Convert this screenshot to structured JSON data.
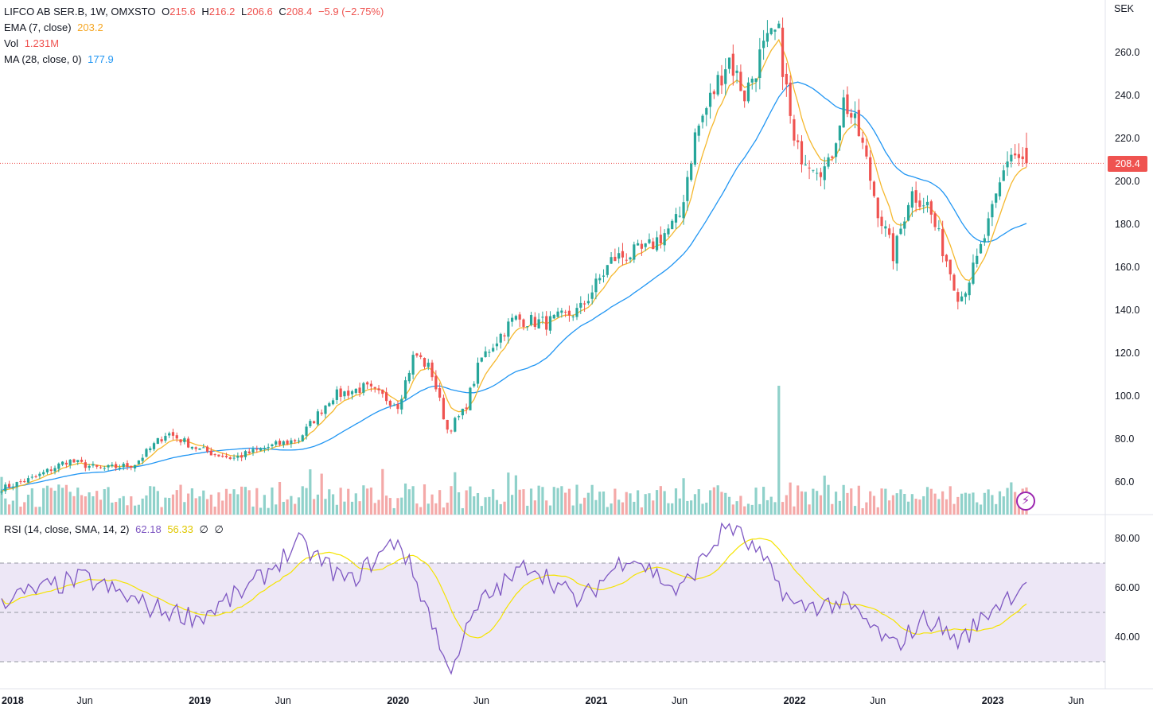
{
  "legend": {
    "symbol": "LIFCO AB SER.B, 1W, OMXSTO",
    "o_label": "O",
    "o_value": "215.6",
    "h_label": "H",
    "h_value": "216.2",
    "l_label": "L",
    "l_value": "206.6",
    "c_label": "C",
    "c_value": "208.4",
    "change": "−5.9 (−2.75%)",
    "ema_label": "EMA (7, close)",
    "ema_value": "203.2",
    "vol_label": "Vol",
    "vol_value": "1.231M",
    "ma_label": "MA (28, close, 0)",
    "ma_value": "177.9",
    "rsi_label": "RSI (14, close, SMA, 14, 2)",
    "rsi_value": "62.18",
    "rsi_sma_value": "56.33",
    "rsi_extra1": "∅",
    "rsi_extra2": "∅"
  },
  "currency": "SEK",
  "last_price_tag": "208.4",
  "colors": {
    "up": "#26a69a",
    "down": "#ef5350",
    "ema": "#f5b82e",
    "ma": "#2196f3",
    "rsi": "#7e57c2",
    "rsi_sma": "#f5e400",
    "rsi_band": "#ede7f6",
    "vol_up": "#8fd1ca",
    "vol_down": "#f4a9a8"
  },
  "chart_data": {
    "type": "candlestick",
    "interval": "1W",
    "y_axis_ticks": [
      "260.0",
      "240.0",
      "220.0",
      "200.0",
      "180.0",
      "160.0",
      "140.0",
      "120.0",
      "100.0",
      "80.0",
      "60.0"
    ],
    "rsi_axis_ticks": [
      "80.00",
      "60.00",
      "40.00"
    ],
    "x_axis_ticks": [
      "2018",
      "Jun",
      "2019",
      "Jun",
      "2020",
      "Jun",
      "2021",
      "Jun",
      "2022",
      "Jun",
      "2023",
      "Jun"
    ],
    "ohlc_last": {
      "open": 215.6,
      "high": 216.2,
      "low": 206.6,
      "close": 208.4
    },
    "close_path": [
      [
        "2018-01",
        57
      ],
      [
        "2018-03",
        62
      ],
      [
        "2018-05",
        70
      ],
      [
        "2018-07",
        66
      ],
      [
        "2018-09",
        68
      ],
      [
        "2018-11",
        83
      ],
      [
        "2019-01",
        75
      ],
      [
        "2019-03",
        71
      ],
      [
        "2019-05",
        76
      ],
      [
        "2019-07",
        80
      ],
      [
        "2019-09",
        100
      ],
      [
        "2019-11",
        104
      ],
      [
        "2020-01",
        96
      ],
      [
        "2020-02",
        120
      ],
      [
        "2020-03",
        112
      ],
      [
        "2020-04",
        84
      ],
      [
        "2020-05",
        93
      ],
      [
        "2020-06",
        117
      ],
      [
        "2020-08",
        136
      ],
      [
        "2020-10",
        134
      ],
      [
        "2020-12",
        140
      ],
      [
        "2021-02",
        164
      ],
      [
        "2021-04",
        168
      ],
      [
        "2021-06",
        182
      ],
      [
        "2021-07",
        222
      ],
      [
        "2021-09",
        258
      ],
      [
        "2021-10",
        240
      ],
      [
        "2021-11",
        260
      ],
      [
        "2021-12",
        270
      ],
      [
        "2022-01",
        215
      ],
      [
        "2022-03",
        205
      ],
      [
        "2022-04",
        238
      ],
      [
        "2022-05",
        220
      ],
      [
        "2022-06",
        188
      ],
      [
        "2022-07",
        165
      ],
      [
        "2022-08",
        195
      ],
      [
        "2022-09",
        190
      ],
      [
        "2022-10",
        168
      ],
      [
        "2022-11",
        145
      ],
      [
        "2022-12",
        162
      ],
      [
        "2023-01",
        186
      ],
      [
        "2023-02",
        214
      ],
      [
        "2023-03",
        208.4
      ]
    ],
    "rsi_path": [
      [
        "2018-01",
        55
      ],
      [
        "2018-06",
        64
      ],
      [
        "2018-10",
        52
      ],
      [
        "2019-01",
        48
      ],
      [
        "2019-04",
        60
      ],
      [
        "2019-07",
        78
      ],
      [
        "2019-10",
        62
      ],
      [
        "2020-01",
        80
      ],
      [
        "2020-03",
        48
      ],
      [
        "2020-04",
        26
      ],
      [
        "2020-06",
        54
      ],
      [
        "2020-09",
        70
      ],
      [
        "2020-12",
        54
      ],
      [
        "2021-03",
        74
      ],
      [
        "2021-06",
        58
      ],
      [
        "2021-09",
        86
      ],
      [
        "2021-11",
        72
      ],
      [
        "2022-01",
        52
      ],
      [
        "2022-04",
        54
      ],
      [
        "2022-07",
        36
      ],
      [
        "2022-09",
        48
      ],
      [
        "2022-11",
        38
      ],
      [
        "2023-01",
        52
      ],
      [
        "2023-03",
        62.18
      ]
    ],
    "volume_spike": {
      "date": "2021-12",
      "value": "max"
    },
    "last_ema": 203.2,
    "last_ma": 177.9,
    "last_vol": "1.231M",
    "last_rsi": 62.18,
    "last_rsi_sma": 56.33
  }
}
